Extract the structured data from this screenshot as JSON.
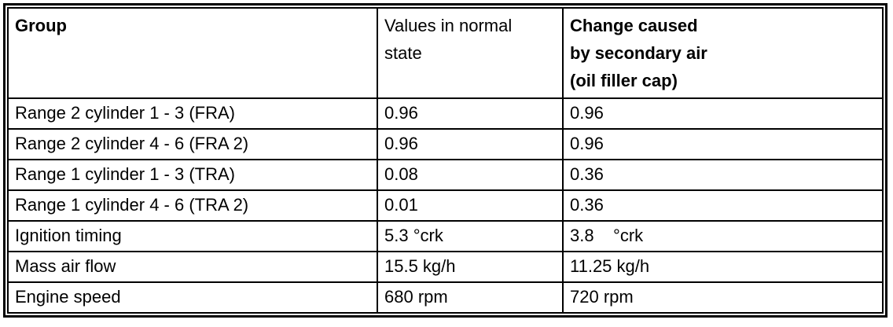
{
  "document": {
    "background": "#ffffff",
    "border_color": "#000000",
    "text_color": "#000000"
  },
  "table": {
    "columns": [
      {
        "id": "group",
        "label": "Group"
      },
      {
        "id": "normal",
        "label": "Values in normal\nstate"
      },
      {
        "id": "change",
        "label": "Change caused\nby secondary air\n(oil filler cap)"
      }
    ],
    "rows": [
      {
        "group": "Range 2 cylinder 1 - 3 (FRA)",
        "normal": "0.96",
        "change": "0.96"
      },
      {
        "group": "Range 2 cylinder 4 - 6 (FRA 2)",
        "normal": "0.96",
        "change": "0.96"
      },
      {
        "group": "Range 1 cylinder 1 - 3 (TRA)",
        "normal": "0.08",
        "change": "0.36"
      },
      {
        "group": "Range 1 cylinder 4 - 6 (TRA 2)",
        "normal": "0.01",
        "change": "0.36"
      },
      {
        "group": "Ignition timing",
        "normal": "5.3 °crk",
        "change": "3.8    °crk"
      },
      {
        "group": "Mass air flow",
        "normal": "15.5 kg/h",
        "change": "11.25 kg/h"
      },
      {
        "group": "Engine speed",
        "normal": "680 rpm",
        "change": "720 rpm"
      }
    ]
  }
}
